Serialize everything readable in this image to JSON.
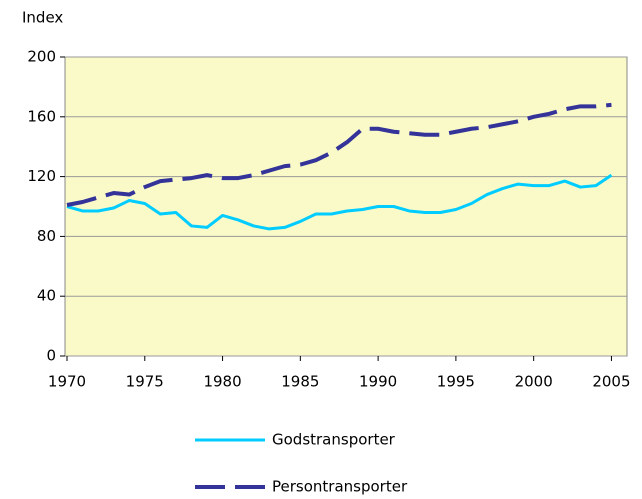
{
  "chart_data": {
    "type": "line",
    "ylabel": "Index",
    "x": [
      1970,
      1971,
      1972,
      1973,
      1974,
      1975,
      1976,
      1977,
      1978,
      1979,
      1980,
      1981,
      1982,
      1983,
      1984,
      1985,
      1986,
      1987,
      1988,
      1989,
      1990,
      1991,
      1992,
      1993,
      1994,
      1995,
      1996,
      1997,
      1998,
      1999,
      2000,
      2001,
      2002,
      2003,
      2004,
      2005
    ],
    "series": [
      {
        "name": "Godstransporter",
        "color": "#00ccff",
        "dashed": false,
        "values": [
          100,
          97,
          97,
          99,
          104,
          102,
          95,
          96,
          87,
          86,
          94,
          91,
          87,
          85,
          86,
          90,
          95,
          95,
          97,
          98,
          100,
          100,
          97,
          96,
          96,
          98,
          102,
          108,
          112,
          115,
          114,
          114,
          117,
          113,
          114,
          121
        ]
      },
      {
        "name": "Persontransporter",
        "color": "#333399",
        "dashed": true,
        "values": [
          101,
          103,
          106,
          109,
          108,
          113,
          117,
          118,
          119,
          121,
          119,
          119,
          121,
          124,
          127,
          128,
          131,
          136,
          143,
          152,
          152,
          150,
          149,
          148,
          148,
          150,
          152,
          153,
          155,
          157,
          160,
          162,
          165,
          167,
          167,
          168
        ]
      }
    ],
    "xlim": [
      1970,
      2006
    ],
    "xticks": [
      1970,
      1975,
      1980,
      1985,
      1990,
      1995,
      2000,
      2005
    ],
    "ylim": [
      0,
      200
    ],
    "yticks": [
      0,
      40,
      80,
      120,
      160,
      200
    ],
    "grid": true,
    "legend": "bottom"
  }
}
